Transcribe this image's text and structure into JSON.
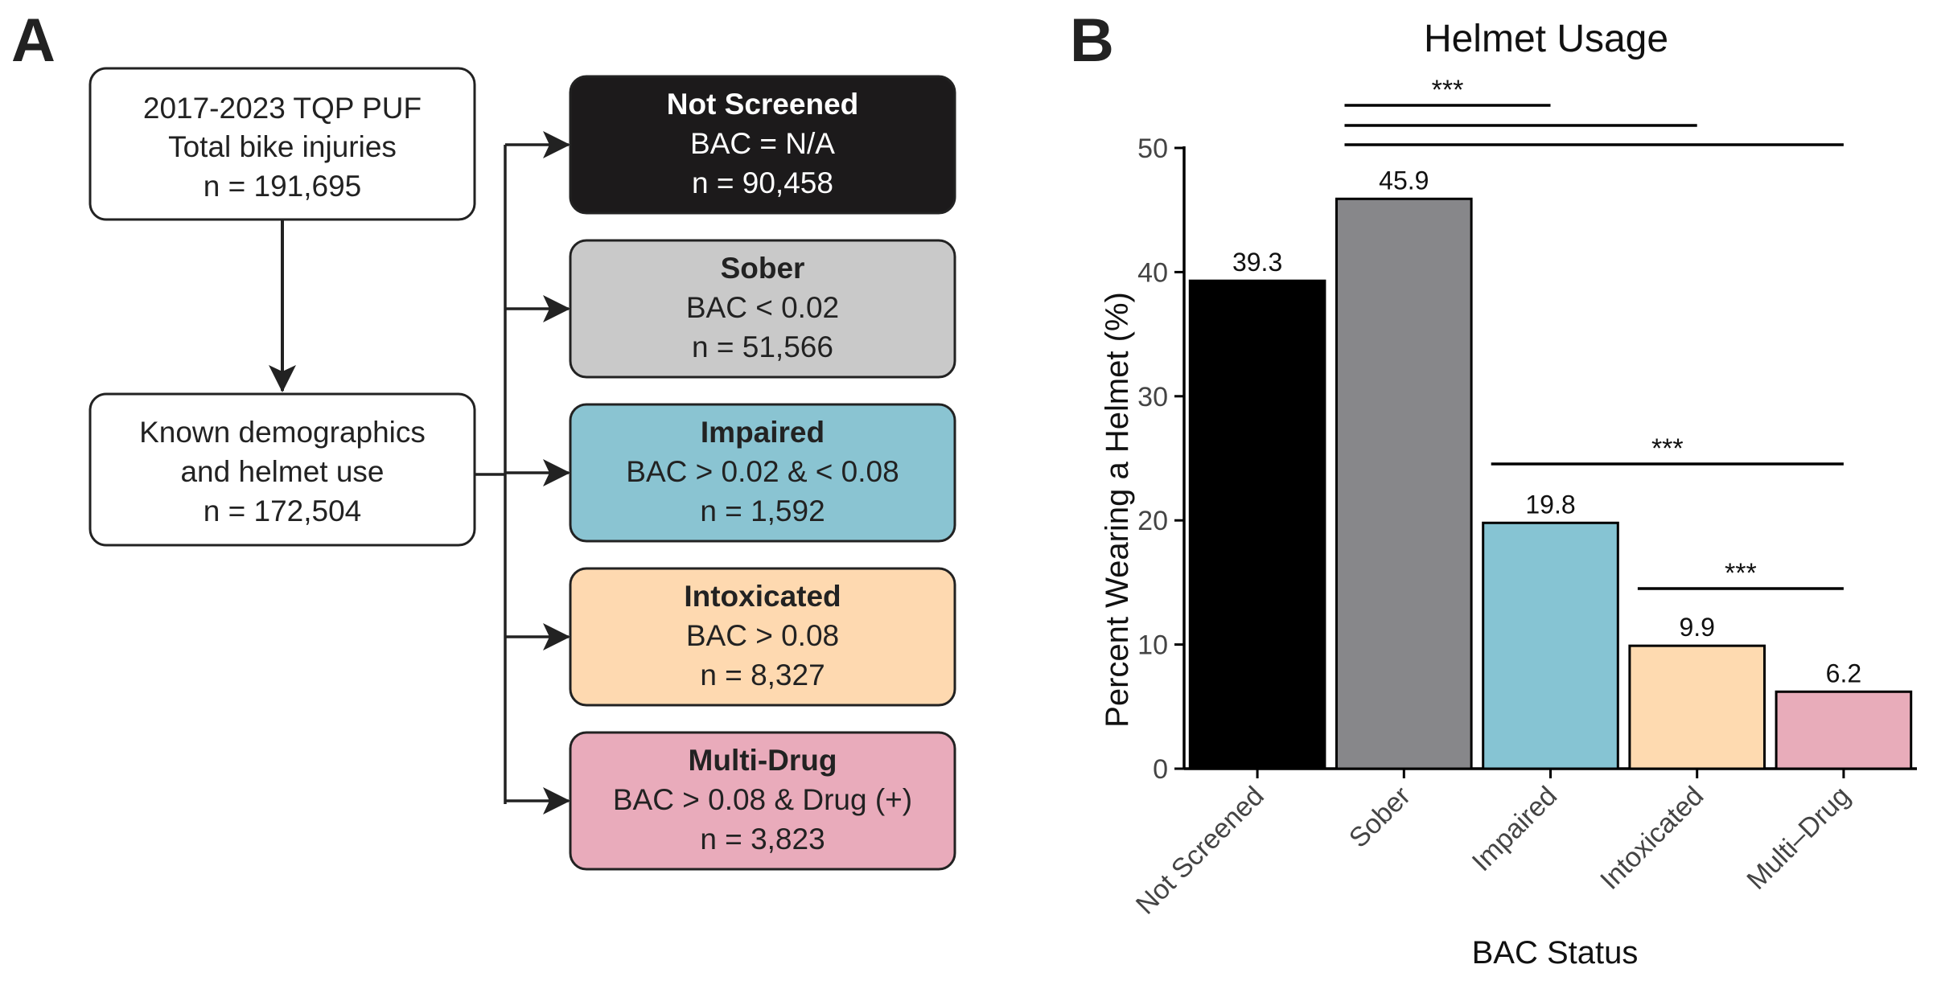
{
  "panel_a": {
    "label": "A",
    "source_box": {
      "lines": [
        "2017-2023 TQP PUF",
        "Total bike injuries",
        "n = 191,695"
      ]
    },
    "known_box": {
      "lines": [
        "Known demographics",
        "and helmet use",
        "n = 172,504"
      ]
    },
    "groups": [
      {
        "title": "Not Screened",
        "criteria": "BAC = N/A",
        "n": "n = 90,458",
        "fill": "#1c1a1b",
        "text_color": "#ffffff"
      },
      {
        "title": "Sober",
        "criteria": "BAC < 0.02",
        "n": "n = 51,566",
        "fill": "#c9c9c9",
        "text_color": "#222222"
      },
      {
        "title": "Impaired",
        "criteria": "BAC > 0.02 & < 0.08",
        "n": "n = 1,592",
        "fill": "#8ac4d2",
        "text_color": "#222222"
      },
      {
        "title": "Intoxicated",
        "criteria": "BAC > 0.08",
        "n": "n = 8,327",
        "fill": "#fed9b0",
        "text_color": "#222222"
      },
      {
        "title": "Multi-Drug",
        "criteria": "BAC > 0.08 & Drug (+)",
        "n": "n = 3,823",
        "fill": "#e9abbb",
        "text_color": "#222222"
      }
    ]
  },
  "panel_b": {
    "label": "B"
  },
  "chart_data": {
    "type": "bar",
    "title": "Helmet Usage",
    "xlabel": "BAC Status",
    "ylabel": "Percent Wearing a Helmet (%)",
    "categories": [
      "Not Screened",
      "Sober",
      "Impaired",
      "Intoxicated",
      "Multi–Drug"
    ],
    "values": [
      39.3,
      45.9,
      19.8,
      9.9,
      6.2
    ],
    "value_labels": [
      "39.3",
      "45.9",
      "19.8",
      "9.9",
      "6.2"
    ],
    "colors": [
      "#000000",
      "#87878a",
      "#86c4d3",
      "#fedab0",
      "#e8acba"
    ],
    "ylim": [
      0,
      50
    ],
    "yticks": [
      0,
      10,
      20,
      30,
      40,
      50
    ],
    "grid": false,
    "legend": "none",
    "significance": [
      {
        "from": 1,
        "to": 2,
        "label": "***"
      },
      {
        "from": 1,
        "to": 3,
        "label": ""
      },
      {
        "from": 1,
        "to": 4,
        "label": ""
      },
      {
        "from": 2,
        "to": 4,
        "label": "***"
      },
      {
        "from": 3,
        "to": 4,
        "label": "***"
      }
    ]
  }
}
